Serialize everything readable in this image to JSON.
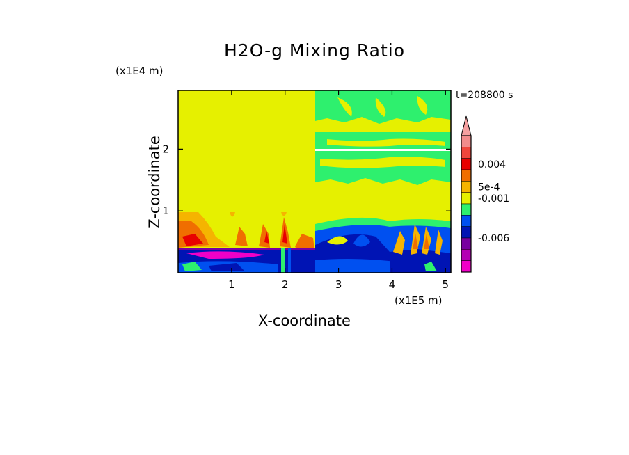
{
  "chart_data": {
    "type": "heatmap",
    "title": "H2O-g Mixing Ratio",
    "xlabel": "X-coordinate",
    "ylabel": "Z-coordinate",
    "x_unit": "(x1E5 m)",
    "y_unit": "(x1E4 m)",
    "time_label": "t=208800 s",
    "x_ticks": [
      1,
      2,
      3,
      4,
      5
    ],
    "y_ticks": [
      1,
      2
    ],
    "xlim": [
      0,
      5.1
    ],
    "ylim": [
      0,
      2.95
    ],
    "colorbar": {
      "labels": [
        "0.004",
        "5e-4",
        "-0.001",
        "-0.006"
      ],
      "colors": [
        "#f28c8c",
        "#f0463c",
        "#e80000",
        "#f06e00",
        "#f5b400",
        "#e6f000",
        "#2ef06e",
        "#0050f0",
        "#0014b4",
        "#7800a0",
        "#b400b4",
        "#f000c8"
      ],
      "extend": "max"
    }
  }
}
